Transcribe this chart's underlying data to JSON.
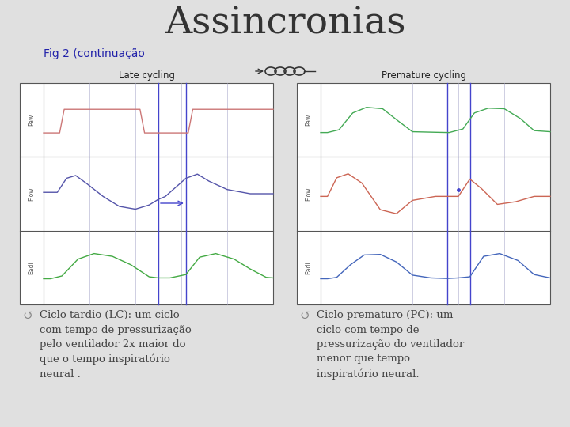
{
  "title": "Assincronias",
  "subtitle": "Fig 2 (continuação",
  "subtitle_color": "#2222aa",
  "subtitle_fontsize": 10,
  "title_fontsize": 34,
  "title_color": "#333333",
  "title_font": "serif",
  "background_color": "#e0e0e0",
  "left_panel_title": "Late cycling",
  "right_panel_title": "Premature cycling",
  "bullet_text_left": "Ciclo tardio (LC): um ciclo\ncom tempo de pressurização\npelo ventilador 2x maior do\nque o tempo inspiratório\nneural .",
  "bullet_text_right": "Ciclo prematuro (PC): um\nciclo com tempo de\npressurização do ventilador\nmenor que tempo\ninspiratório neural.",
  "text_fontsize": 9.5,
  "text_color": "#444444",
  "panel_bg": "white",
  "panel_border": "#555555",
  "label_color": "#555555",
  "grid_color": "#aaaacc",
  "blue_line_color": "#4444cc",
  "arrow_color": "#333366"
}
